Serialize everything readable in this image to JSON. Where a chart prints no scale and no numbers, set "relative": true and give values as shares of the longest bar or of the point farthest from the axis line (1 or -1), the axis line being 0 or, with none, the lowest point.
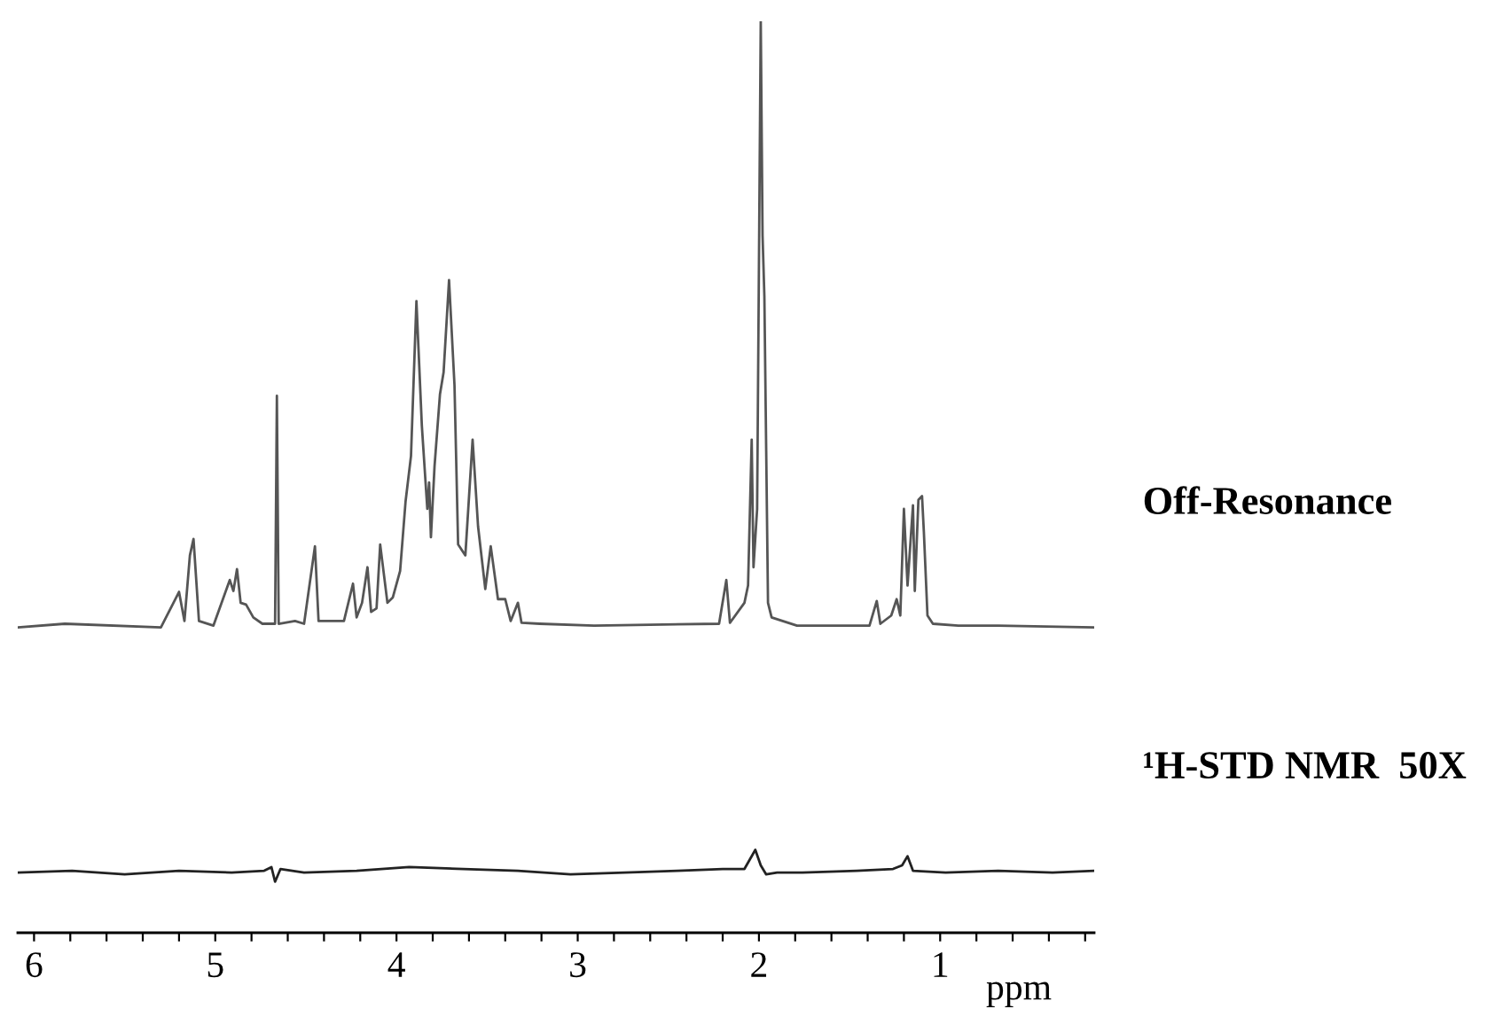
{
  "chart_data": {
    "type": "line",
    "relative": true,
    "xlabel": "ppm",
    "xlim": [
      6.09,
      0.15
    ],
    "xticks": [
      6,
      {
        "value": 5.8,
        "label": null
      },
      {
        "value": 5.6,
        "label": null
      },
      {
        "value": 5.4,
        "label": null
      },
      {
        "value": 5.2,
        "label": null
      },
      5,
      {
        "value": 4.8,
        "label": null
      },
      {
        "value": 4.6,
        "label": null
      },
      {
        "value": 4.4,
        "label": null
      },
      {
        "value": 4.2,
        "label": null
      },
      4,
      {
        "value": 3.8,
        "label": null
      },
      {
        "value": 3.6,
        "label": null
      },
      {
        "value": 3.4,
        "label": null
      },
      {
        "value": 3.2,
        "label": null
      },
      3,
      {
        "value": 2.8,
        "label": null
      },
      {
        "value": 2.6,
        "label": null
      },
      {
        "value": 2.4,
        "label": null
      },
      {
        "value": 2.2,
        "label": null
      },
      2,
      {
        "value": 1.8,
        "label": null
      },
      {
        "value": 1.6,
        "label": null
      },
      {
        "value": 1.4,
        "label": null
      },
      {
        "value": 1.2,
        "label": null
      },
      1,
      {
        "value": 0.8,
        "label": null
      },
      {
        "value": 0.6,
        "label": null
      },
      {
        "value": 0.4,
        "label": null
      },
      {
        "value": 0.2,
        "label": null
      }
    ],
    "tick_labels": "x",
    "grid": false,
    "legend": false,
    "line_style": "solid",
    "marker": "none",
    "series": [
      {
        "name": "Off-Resonance",
        "color": "#555555",
        "x": [
          6.09,
          5.83,
          5.3,
          5.2,
          5.17,
          5.14,
          5.12,
          5.09,
          5.01,
          4.92,
          4.9,
          4.88,
          4.86,
          4.83,
          4.79,
          4.74,
          4.67,
          4.66,
          4.65,
          4.56,
          4.51,
          4.45,
          4.43,
          4.29,
          4.24,
          4.22,
          4.19,
          4.16,
          4.14,
          4.11,
          4.09,
          4.05,
          4.02,
          3.98,
          3.95,
          3.92,
          3.89,
          3.86,
          3.83,
          3.82,
          3.81,
          3.79,
          3.76,
          3.74,
          3.71,
          3.68,
          3.66,
          3.62,
          3.58,
          3.55,
          3.51,
          3.48,
          3.44,
          3.4,
          3.37,
          3.33,
          3.31,
          3.21,
          2.91,
          2.22,
          2.18,
          2.16,
          2.08,
          2.06,
          2.04,
          2.03,
          2.01,
          1.99,
          1.98,
          1.97,
          1.95,
          1.93,
          1.79,
          1.39,
          1.35,
          1.33,
          1.27,
          1.24,
          1.22,
          1.2,
          1.18,
          1.15,
          1.14,
          1.12,
          1.1,
          1.09,
          1.07,
          1.04,
          0.9,
          0.68,
          0.15
        ],
        "values": [
          0.335,
          0.339,
          0.335,
          0.374,
          0.342,
          0.414,
          0.432,
          0.342,
          0.337,
          0.387,
          0.375,
          0.399,
          0.362,
          0.36,
          0.346,
          0.339,
          0.339,
          0.589,
          0.339,
          0.342,
          0.339,
          0.424,
          0.342,
          0.342,
          0.383,
          0.346,
          0.362,
          0.401,
          0.352,
          0.356,
          0.426,
          0.362,
          0.368,
          0.397,
          0.473,
          0.523,
          0.693,
          0.556,
          0.465,
          0.494,
          0.434,
          0.512,
          0.591,
          0.615,
          0.716,
          0.601,
          0.426,
          0.414,
          0.541,
          0.446,
          0.377,
          0.424,
          0.366,
          0.366,
          0.342,
          0.362,
          0.34,
          0.339,
          0.337,
          0.339,
          0.387,
          0.34,
          0.362,
          0.381,
          0.541,
          0.401,
          0.465,
          1.0,
          0.765,
          0.698,
          0.362,
          0.346,
          0.337,
          0.337,
          0.364,
          0.339,
          0.348,
          0.366,
          0.348,
          0.465,
          0.381,
          0.469,
          0.375,
          0.475,
          0.479,
          0.44,
          0.348,
          0.339,
          0.337,
          0.337,
          0.335
        ]
      },
      {
        "name": "¹H-STD NMR  50X",
        "color": "#222222",
        "x": [
          6.09,
          5.79,
          5.5,
          5.2,
          4.91,
          4.73,
          4.69,
          4.67,
          4.64,
          4.51,
          4.22,
          3.93,
          3.63,
          3.33,
          3.04,
          2.74,
          2.45,
          2.2,
          2.08,
          2.02,
          1.99,
          1.96,
          1.9,
          1.76,
          1.46,
          1.26,
          1.21,
          1.18,
          1.15,
          0.97,
          0.68,
          0.38,
          0.15
        ],
        "values": [
          0.066,
          0.068,
          0.064,
          0.068,
          0.066,
          0.068,
          0.072,
          0.056,
          0.07,
          0.066,
          0.068,
          0.072,
          0.07,
          0.068,
          0.064,
          0.066,
          0.068,
          0.07,
          0.07,
          0.091,
          0.074,
          0.064,
          0.066,
          0.066,
          0.068,
          0.07,
          0.074,
          0.084,
          0.068,
          0.066,
          0.068,
          0.066,
          0.068
        ]
      }
    ]
  }
}
